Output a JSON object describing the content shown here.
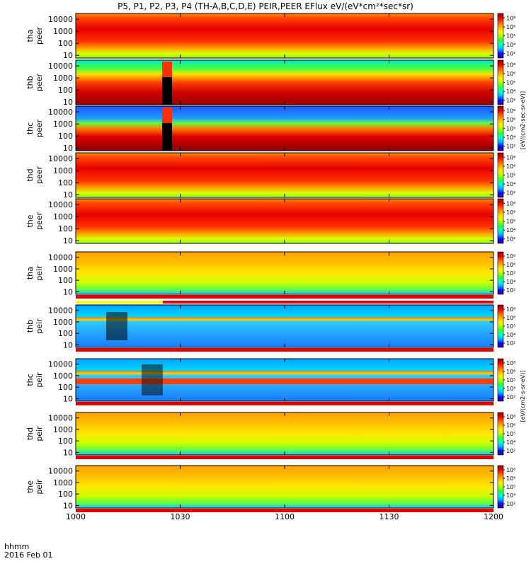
{
  "chart_data": {
    "type": "heatmap",
    "title": "P5, P1, P2, P3, P4 (TH-A,B,C,D,E) PEIR,PEER EFlux eV/(eV*cm²*sec*sr)",
    "time_axis": {
      "date_label": "2016 Feb 01",
      "format_label": "hhmm",
      "range": [
        "1000",
        "1200"
      ],
      "ticks": [
        "1000",
        "1030",
        "1100",
        "1130",
        "1200"
      ]
    },
    "energy_axis": {
      "scale": "log",
      "range": [
        6,
        30000
      ],
      "ticks": [
        "10",
        "100",
        "1000",
        "10000"
      ]
    },
    "colorbar": {
      "scale": "log",
      "ticks": [
        "10²",
        "10⁴",
        "10⁵",
        "10⁶",
        "10⁸"
      ],
      "colors": [
        "#3a0086",
        "#0010ff",
        "#00b4ff",
        "#00ffd0",
        "#30ff30",
        "#b4ff00",
        "#ffee00",
        "#ffaa00",
        "#ff5a00",
        "#e00000",
        "#900000"
      ]
    },
    "electron_unit_label": "[eV/(cm2-sec-sr-eV)]",
    "ion_unit_label": "[eV/(cm2-s-sr-eV)]",
    "panels": [
      {
        "name": "tha",
        "line1": "tha",
        "line2": "peer",
        "species": "electron"
      },
      {
        "name": "thb",
        "line1": "thb",
        "line2": "peer",
        "species": "electron"
      },
      {
        "name": "thc",
        "line1": "thc",
        "line2": "peer",
        "species": "electron"
      },
      {
        "name": "thd",
        "line1": "thd",
        "line2": "peer",
        "species": "electron"
      },
      {
        "name": "the",
        "line1": "the",
        "line2": "peer",
        "species": "electron"
      },
      {
        "name": "tha",
        "line1": "tha",
        "line2": "peir",
        "species": "ion"
      },
      {
        "name": "thb",
        "line1": "thb",
        "line2": "peir",
        "species": "ion"
      },
      {
        "name": "thc",
        "line1": "thc",
        "line2": "peir",
        "species": "ion"
      },
      {
        "name": "thd",
        "line1": "thd",
        "line2": "peir",
        "species": "ion"
      },
      {
        "name": "the",
        "line1": "the",
        "line2": "peir",
        "species": "ion"
      }
    ]
  }
}
